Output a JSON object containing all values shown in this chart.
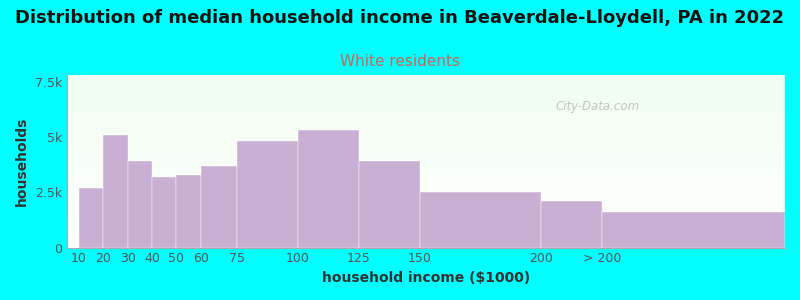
{
  "title": "Distribution of median household income in Beaverdale-Lloydell, PA in 2022",
  "subtitle": "White residents",
  "xlabel": "household income ($1000)",
  "ylabel": "households",
  "categories": [
    "10",
    "20",
    "30",
    "40",
    "50",
    "60",
    "75",
    "100",
    "125",
    "150",
    "200",
    "> 200"
  ],
  "values": [
    2700,
    5100,
    3900,
    3200,
    3300,
    3700,
    4800,
    5300,
    3900,
    2500,
    2100,
    1600
  ],
  "bar_color": "#c9afd4",
  "background_color": "#00ffff",
  "title_fontsize": 13,
  "subtitle_fontsize": 11,
  "subtitle_color": "#cc6655",
  "title_color": "#111111",
  "axis_label_fontsize": 10,
  "tick_fontsize": 9,
  "ylim": [
    0,
    7800
  ],
  "yticks": [
    0,
    2500,
    5000,
    7500
  ],
  "ytick_labels": [
    "0",
    "2.5k",
    "5k",
    "7.5k"
  ],
  "watermark_text": "City-Data.com",
  "watermark_color": "#bbbbbb",
  "x_positions": [
    10,
    20,
    30,
    40,
    50,
    60,
    75,
    100,
    125,
    150,
    200,
    225
  ],
  "bar_widths": [
    10,
    10,
    10,
    10,
    10,
    15,
    25,
    25,
    25,
    50,
    25,
    75
  ],
  "xlim": [
    5,
    300
  ]
}
